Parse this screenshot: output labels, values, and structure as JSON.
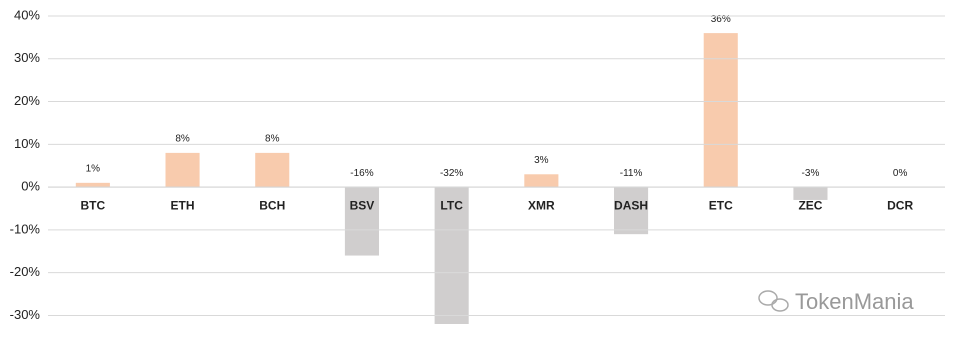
{
  "chart_data": {
    "type": "bar",
    "categories": [
      "BTC",
      "ETH",
      "BCH",
      "BSV",
      "LTC",
      "XMR",
      "DASH",
      "ETC",
      "ZEC",
      "DCR"
    ],
    "values": [
      1,
      8,
      8,
      -16,
      -32,
      3,
      -11,
      36,
      -3,
      0
    ],
    "value_labels": [
      "1%",
      "8%",
      "8%",
      "-16%",
      "-32%",
      "3%",
      "-11%",
      "36%",
      "-3%",
      "0%"
    ],
    "positive_color": "#f8cbad",
    "negative_color": "#d0cece",
    "ylim": [
      -32,
      40
    ],
    "yticks": [
      {
        "value": -30,
        "label": "-30%"
      },
      {
        "value": -20,
        "label": "-20%"
      },
      {
        "value": -10,
        "label": "-10%"
      },
      {
        "value": 0,
        "label": "0%"
      },
      {
        "value": 10,
        "label": "10%"
      },
      {
        "value": 20,
        "label": "20%"
      },
      {
        "value": 30,
        "label": "30%"
      },
      {
        "value": 40,
        "label": "40%"
      }
    ],
    "grid": true,
    "watermark": "TokenMania"
  }
}
